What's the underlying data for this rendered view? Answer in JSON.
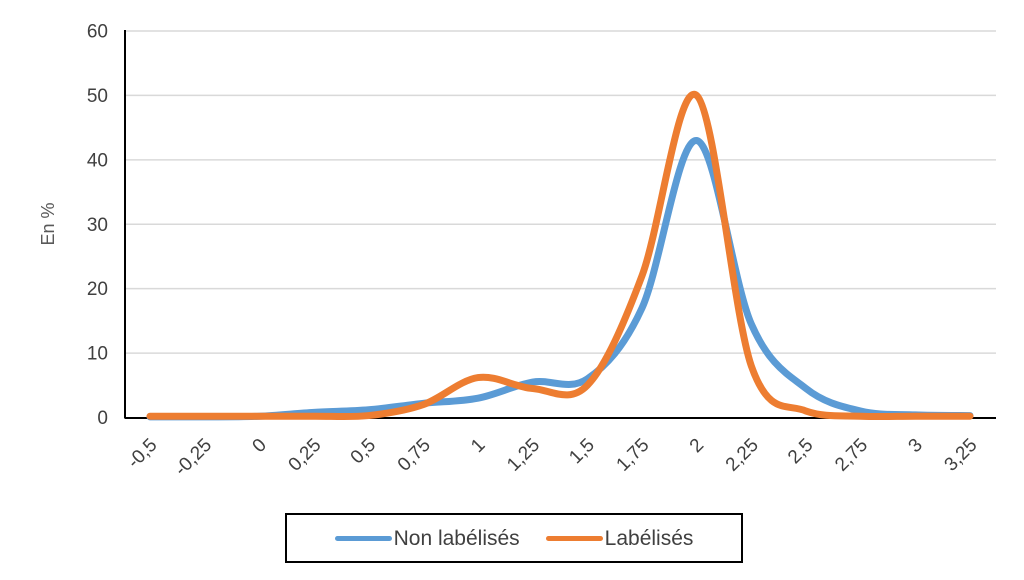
{
  "chart_data": {
    "type": "line",
    "smooth": true,
    "title": "",
    "xlabel": "",
    "ylabel": "En %",
    "ylim": [
      0,
      60
    ],
    "yticks": [
      0,
      10,
      20,
      30,
      40,
      50,
      60
    ],
    "grid": "horizontal-only",
    "legend_position": "bottom-center-boxed",
    "categories": [
      "-0,5",
      "-0,25",
      "0",
      "0,25",
      "0,5",
      "0,75",
      "1",
      "1,25",
      "1,5",
      "1,75",
      "2",
      "2,25",
      "2,5",
      "2,75",
      "3",
      "3,25"
    ],
    "series": [
      {
        "name": "Non labélisés",
        "color": "#5B9BD5",
        "values": [
          0.1,
          0.1,
          0.2,
          0.8,
          1.2,
          2.2,
          3,
          5.5,
          6,
          17,
          43,
          14.5,
          4.5,
          1,
          0.4,
          0.3
        ]
      },
      {
        "name": "Labélisés",
        "color": "#ED7D31",
        "values": [
          0.2,
          0.2,
          0.2,
          0.2,
          0.3,
          2,
          6.2,
          4.5,
          5,
          22,
          50,
          8,
          1,
          0.2,
          0.2,
          0.2
        ]
      }
    ],
    "axis_color": "#000000",
    "gridline_color": "#D9D9D9",
    "tick_label_color": "#404040",
    "axis_title_color": "#595959"
  }
}
